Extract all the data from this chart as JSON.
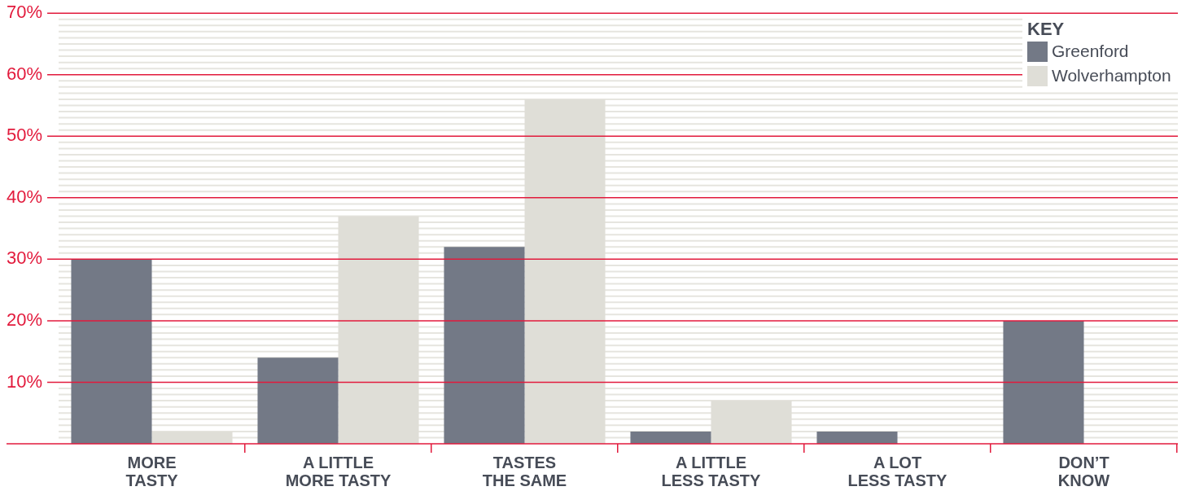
{
  "chart_data": {
    "type": "bar",
    "categories": [
      "MORE\nTASTY",
      "A LITTLE\nMORE TASTY",
      "TASTES\nTHE SAME",
      "A LITTLE\nLESS TASTY",
      "A LOT\nLESS TASTY",
      "DON’T\nKNOW"
    ],
    "series": [
      {
        "name": "Greenford",
        "color": "#737986",
        "values": [
          30,
          14,
          32,
          2,
          2,
          20
        ]
      },
      {
        "name": "Wolverhampton",
        "color": "#dfded7",
        "values": [
          2,
          37,
          56,
          7,
          0,
          0
        ]
      }
    ],
    "ylim": [
      0,
      70
    ],
    "yticks": [
      {
        "value": 1,
        "label": null
      },
      {
        "value": 2,
        "label": null
      },
      {
        "value": 3,
        "label": null
      },
      {
        "value": 4,
        "label": null
      },
      {
        "value": 5,
        "label": null
      },
      {
        "value": 6,
        "label": null
      },
      {
        "value": 7,
        "label": null
      },
      {
        "value": 8,
        "label": null
      },
      {
        "value": 9,
        "label": null
      },
      {
        "value": 10,
        "label": "10%"
      },
      {
        "value": 11,
        "label": null
      },
      {
        "value": 12,
        "label": null
      },
      {
        "value": 13,
        "label": null
      },
      {
        "value": 14,
        "label": null
      },
      {
        "value": 15,
        "label": null
      },
      {
        "value": 16,
        "label": null
      },
      {
        "value": 17,
        "label": null
      },
      {
        "value": 18,
        "label": null
      },
      {
        "value": 19,
        "label": null
      },
      {
        "value": 20,
        "label": "20%"
      },
      {
        "value": 21,
        "label": null
      },
      {
        "value": 22,
        "label": null
      },
      {
        "value": 23,
        "label": null
      },
      {
        "value": 24,
        "label": null
      },
      {
        "value": 25,
        "label": null
      },
      {
        "value": 26,
        "label": null
      },
      {
        "value": 27,
        "label": null
      },
      {
        "value": 28,
        "label": null
      },
      {
        "value": 29,
        "label": null
      },
      {
        "value": 30,
        "label": "30%"
      },
      {
        "value": 31,
        "label": null
      },
      {
        "value": 32,
        "label": null
      },
      {
        "value": 33,
        "label": null
      },
      {
        "value": 34,
        "label": null
      },
      {
        "value": 35,
        "label": null
      },
      {
        "value": 36,
        "label": null
      },
      {
        "value": 37,
        "label": null
      },
      {
        "value": 38,
        "label": null
      },
      {
        "value": 39,
        "label": null
      },
      {
        "value": 40,
        "label": "40%"
      },
      {
        "value": 41,
        "label": null
      },
      {
        "value": 42,
        "label": null
      },
      {
        "value": 43,
        "label": null
      },
      {
        "value": 44,
        "label": null
      },
      {
        "value": 45,
        "label": null
      },
      {
        "value": 46,
        "label": null
      },
      {
        "value": 47,
        "label": null
      },
      {
        "value": 48,
        "label": null
      },
      {
        "value": 49,
        "label": null
      },
      {
        "value": 50,
        "label": "50%"
      },
      {
        "value": 51,
        "label": null
      },
      {
        "value": 52,
        "label": null
      },
      {
        "value": 53,
        "label": null
      },
      {
        "value": 54,
        "label": null
      },
      {
        "value": 55,
        "label": null
      },
      {
        "value": 56,
        "label": null
      },
      {
        "value": 57,
        "label": null
      },
      {
        "value": 58,
        "label": null
      },
      {
        "value": 59,
        "label": null
      },
      {
        "value": 60,
        "label": "60%"
      },
      {
        "value": 61,
        "label": null
      },
      {
        "value": 62,
        "label": null
      },
      {
        "value": 63,
        "label": null
      },
      {
        "value": 64,
        "label": null
      },
      {
        "value": 65,
        "label": null
      },
      {
        "value": 66,
        "label": null
      },
      {
        "value": 67,
        "label": null
      },
      {
        "value": 68,
        "label": null
      },
      {
        "value": 69,
        "label": null
      },
      {
        "value": 70,
        "label": "70%"
      }
    ],
    "grid": "y",
    "legend": "top right",
    "legend_title": "KEY"
  }
}
